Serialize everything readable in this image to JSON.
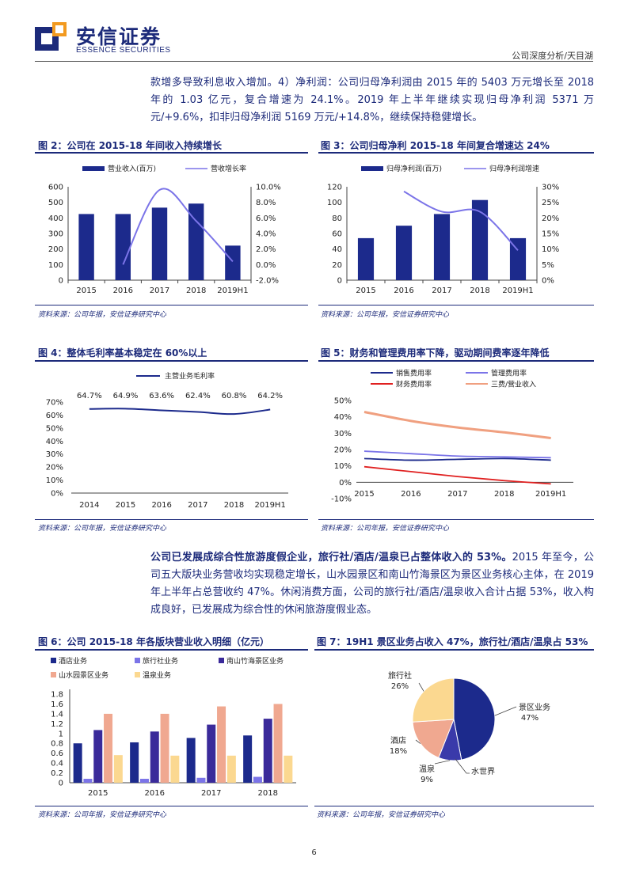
{
  "header": {
    "logo_cn": "安信证券",
    "logo_en": "ESSENCE SECURITIES",
    "right": "公司深度分析/天目湖"
  },
  "para1": "款增多导致利息收入增加。4）净利润：公司归母净利润由 2015 年的 5403 万元增长至 2018 年的 1.03 亿元，复合增速为 24.1%。2019 年上半年继续实现归母净利润 5371 万元/+9.6%，扣非归母净利润 5169 万元/+14.8%，继续保持稳健增长。",
  "para2_bold": "公司已发展成综合性旅游度假企业，旅行社/酒店/温泉已占整体收入的 53%。",
  "para2_rest": "2015 年至今，公司五大版块业务营收均实现稳定增长，山水园景区和南山竹海景区为景区业务核心主体，在 2019 年上半年占总营收约 47%。休闲消费方面，公司的旅行社/酒店/温泉收入合计占据 53%，收入构成良好，已发展成为综合性的休闲旅游度假业态。",
  "figures": {
    "f2": {
      "title": "图 2：公司在 2015-18 年间收入持续增长",
      "source": "资料来源：公司年报，安信证券研究中心"
    },
    "f3": {
      "title": "图 3：公司归母净利 2015-18 年间复合增速达 24%",
      "source": "资料来源：公司年报，安信证券研究中心"
    },
    "f4": {
      "title": "图 4：整体毛利率基本稳定在 60%以上",
      "source": "资料来源：公司年报，安信证券研究中心"
    },
    "f5": {
      "title": "图 5：财务和管理费用率下降，驱动期间费率逐年降低",
      "source": "资料来源：公司年报，安信证券研究中心"
    },
    "f6": {
      "title": "图 6：公司 2015-18 年各版块营业收入明细（亿元）",
      "source": "资料来源：公司年报，安信证券研究中心"
    },
    "f7": {
      "title": "图 7：19H1 景区业务占收入 47%，旅行社/酒店/温泉占 53%",
      "source": "资料来源：公司年报，安信证券研究中心"
    }
  },
  "chart_data": [
    {
      "id": "f2",
      "type": "bar+line",
      "categories": [
        "2015",
        "2016",
        "2017",
        "2018",
        "2019H1"
      ],
      "series": [
        {
          "name": "营业收入(百万)",
          "kind": "bar",
          "axis": "left",
          "values": [
            425,
            425,
            466,
            492,
            222
          ]
        },
        {
          "name": "营收增长率",
          "kind": "line",
          "axis": "right",
          "values": [
            null,
            0.0,
            9.6,
            5.6,
            0.4
          ]
        }
      ],
      "ylim_left": [
        0,
        600
      ],
      "yticks_left": [
        "0",
        "100",
        "200",
        "300",
        "400",
        "500",
        "600"
      ],
      "ylim_right": [
        -2,
        10
      ],
      "yticks_right": [
        "-2.0%",
        "0.0%",
        "2.0%",
        "4.0%",
        "6.0%",
        "8.0%",
        "10.0%"
      ],
      "colors": {
        "bar": "#1c2a8c",
        "line": "#7b74e8"
      }
    },
    {
      "id": "f3",
      "type": "bar+line",
      "categories": [
        "2015",
        "2016",
        "2017",
        "2018",
        "2019H1"
      ],
      "series": [
        {
          "name": "归母净利润(百万)",
          "kind": "bar",
          "axis": "left",
          "values": [
            54,
            70,
            85,
            103,
            54
          ]
        },
        {
          "name": "归母净利润增速",
          "kind": "line",
          "axis": "right",
          "values": [
            null,
            28.5,
            22,
            22,
            9.6
          ]
        }
      ],
      "ylim_left": [
        0,
        120
      ],
      "yticks_left": [
        "0",
        "20",
        "40",
        "60",
        "80",
        "100",
        "120"
      ],
      "ylim_right": [
        0,
        30
      ],
      "yticks_right": [
        "0%",
        "5%",
        "10%",
        "15%",
        "20%",
        "25%",
        "30%"
      ],
      "colors": {
        "bar": "#1c2a8c",
        "line": "#7b74e8"
      }
    },
    {
      "id": "f4",
      "type": "line",
      "categories": [
        "2014",
        "2015",
        "2016",
        "2017",
        "2018",
        "2019H1"
      ],
      "series": [
        {
          "name": "主营业务毛利率",
          "values": [
            64.7,
            64.9,
            63.6,
            62.4,
            60.8,
            64.2
          ],
          "labels": [
            "64.7%",
            "64.9%",
            "63.6%",
            "62.4%",
            "60.8%",
            "64.2%"
          ]
        }
      ],
      "ylim": [
        0,
        70
      ],
      "yticks": [
        "0%",
        "10%",
        "20%",
        "30%",
        "40%",
        "50%",
        "60%",
        "70%"
      ],
      "colors": {
        "line": "#1c2a8c"
      }
    },
    {
      "id": "f5",
      "type": "line",
      "categories": [
        "2015",
        "2016",
        "2017",
        "2018",
        "2019H1"
      ],
      "series": [
        {
          "name": "销售费用率",
          "values": [
            14.5,
            13.5,
            14,
            14.5,
            13.5
          ],
          "color": "#1c2a8c"
        },
        {
          "name": "管理费用率",
          "values": [
            19,
            17.5,
            16,
            15.5,
            15
          ],
          "color": "#7b74e8"
        },
        {
          "name": "财务费用率",
          "values": [
            9.5,
            6.5,
            3.5,
            1,
            -1
          ],
          "color": "#e02020"
        },
        {
          "name": "三费/营业收入",
          "values": [
            43,
            37.5,
            33.5,
            30.5,
            27
          ],
          "color": "#f0a080"
        }
      ],
      "ylim": [
        -10,
        50
      ],
      "yticks": [
        "-10%",
        "0%",
        "10%",
        "20%",
        "30%",
        "40%",
        "50%"
      ]
    },
    {
      "id": "f6",
      "type": "bar",
      "categories": [
        "2015",
        "2016",
        "2017",
        "2018"
      ],
      "series": [
        {
          "name": "酒店业务",
          "values": [
            0.8,
            0.82,
            0.91,
            0.96
          ],
          "color": "#1c2a8c"
        },
        {
          "name": "旅行社业务",
          "values": [
            0.08,
            0.08,
            0.1,
            0.12
          ],
          "color": "#7b74e8"
        },
        {
          "name": "南山竹海景区业务",
          "values": [
            1.07,
            1.04,
            1.18,
            1.3
          ],
          "color": "#3a2a9a"
        },
        {
          "name": "山水园景区业务",
          "values": [
            1.4,
            1.4,
            1.55,
            1.6
          ],
          "color": "#f0a890"
        },
        {
          "name": "温泉业务",
          "values": [
            0.56,
            0.55,
            0.55,
            0.55
          ],
          "color": "#fbd890"
        }
      ],
      "ylim": [
        0,
        1.8
      ],
      "yticks": [
        "0",
        "0.2",
        "0.4",
        "0.6",
        "0.8",
        "1",
        "1.2",
        "1.4",
        "1.6",
        "1.8"
      ]
    },
    {
      "id": "f7",
      "type": "pie",
      "slices": [
        {
          "name": "景区业务",
          "value": 47,
          "label": "47%",
          "color": "#1c2a8c"
        },
        {
          "name": "水世界",
          "value": 0,
          "label": "",
          "color": "#ffffff"
        },
        {
          "name": "温泉",
          "value": 9,
          "label": "9%",
          "color": "#3a3aaa"
        },
        {
          "name": "酒店",
          "value": 18,
          "label": "18%",
          "color": "#f0a890"
        },
        {
          "name": "旅行社",
          "value": 26,
          "label": "26%",
          "color": "#fbd890"
        }
      ]
    }
  ],
  "page_number": "6"
}
